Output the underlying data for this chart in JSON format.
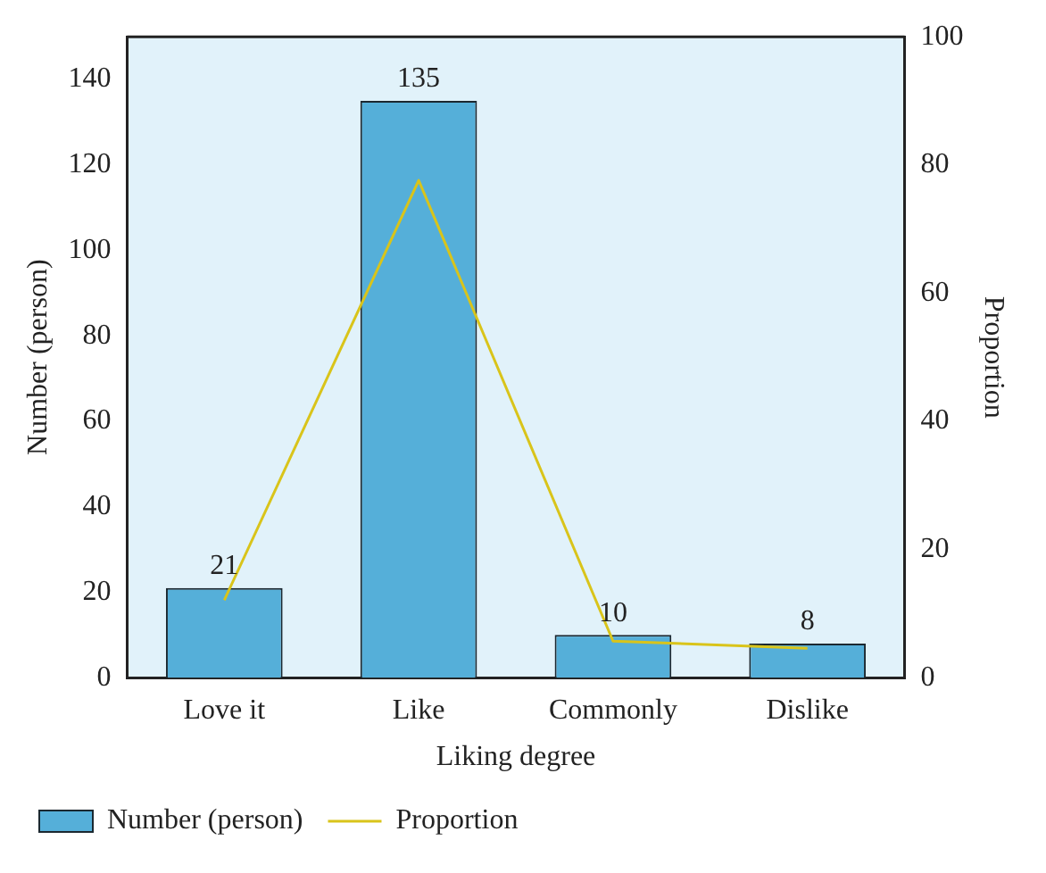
{
  "chart_data": {
    "type": "bar",
    "xlabel": "Liking degree",
    "ylabel": "Number (person)",
    "y2label": "Proportion",
    "categories": [
      "Love it",
      "Like",
      "Commonly",
      "Dislike"
    ],
    "series": [
      {
        "name": "Number (person)",
        "color": "#55afd9",
        "values": [
          21,
          135,
          10,
          8
        ],
        "value_labels": [
          "21",
          "135",
          "10",
          "8"
        ]
      },
      {
        "name": "Proportion",
        "type": "line",
        "axis": "y2",
        "color": "#d9c41a",
        "values": [
          12.1,
          77.6,
          5.7,
          4.6
        ]
      }
    ],
    "ylim": [
      0,
      150
    ],
    "yticks": [
      0,
      20,
      40,
      60,
      80,
      100,
      120,
      140
    ],
    "y2lim": [
      0,
      100
    ],
    "y2ticks": [
      0,
      20,
      40,
      60,
      80,
      100
    ],
    "grid": false,
    "legend": "bottom left",
    "marker": "none",
    "line_style": "solid"
  }
}
